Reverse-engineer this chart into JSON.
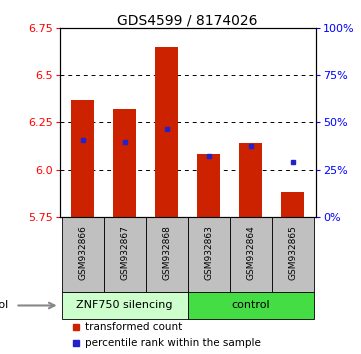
{
  "title": "GDS4599 / 8174026",
  "samples": [
    "GSM932866",
    "GSM932867",
    "GSM932868",
    "GSM932863",
    "GSM932864",
    "GSM932865"
  ],
  "n_silencing": 3,
  "bar_bottom": 5.75,
  "bar_tops": [
    6.37,
    6.32,
    6.65,
    6.08,
    6.14,
    5.88
  ],
  "blue_dot_values": [
    6.155,
    6.145,
    6.215,
    6.07,
    6.125,
    6.04
  ],
  "ylim": [
    5.75,
    6.75
  ],
  "yticks_left": [
    5.75,
    6.0,
    6.25,
    6.5,
    6.75
  ],
  "yticks_right_pct": [
    0,
    25,
    50,
    75,
    100
  ],
  "bar_color": "#CC2200",
  "dot_color": "#2222CC",
  "sample_bg_color": "#C0C0C0",
  "silencing_bg_color": "#CCFFCC",
  "control_bg_color": "#44DD44",
  "bar_width": 0.55,
  "group_labels": [
    "ZNF750 silencing",
    "control"
  ],
  "legend_red": "transformed count",
  "legend_blue": "percentile rank within the sample",
  "title_fontsize": 10,
  "axis_fontsize": 8,
  "sample_fontsize": 6.5,
  "group_fontsize": 8,
  "legend_fontsize": 7.5
}
